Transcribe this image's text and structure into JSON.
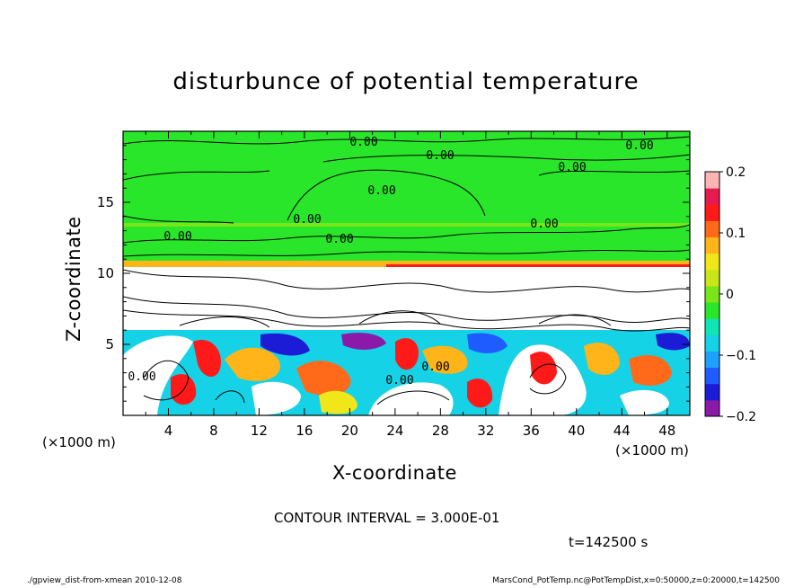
{
  "chart_data": {
    "type": "heatmap",
    "title": "disturbunce of potential temperature",
    "xlabel": "X-coordinate",
    "ylabel": "Z-coordinate",
    "x_unit_label": "(×1000 m)",
    "xlim": [
      0,
      50
    ],
    "ylim": [
      0,
      20
    ],
    "x_ticks": [
      "4",
      "8",
      "12",
      "16",
      "20",
      "24",
      "28",
      "32",
      "36",
      "40",
      "44",
      "48"
    ],
    "y_ticks": [
      "5",
      "10",
      "15"
    ],
    "colorbar": {
      "range": [
        -0.2,
        0.2
      ],
      "tick_labels": [
        "0.2",
        "0.1",
        "0",
        "−0.1",
        "−0.2"
      ],
      "colors": [
        "#8b1aa8",
        "#1c1cd6",
        "#1e5cff",
        "#1ea0ff",
        "#16d2e6",
        "#10e6b4",
        "#2ae62a",
        "#7ae61a",
        "#c8e61a",
        "#f0e61a",
        "#ffb41a",
        "#ff6a1a",
        "#ff1a1a",
        "#e61a50",
        "#ffb4b4"
      ]
    },
    "contour_labels": [
      "0.00",
      "0.00",
      "0.00",
      "0.00",
      "0.00",
      "0.00",
      "0.00",
      "0.00",
      "0.00",
      "0.00",
      "0.00",
      "0.00"
    ],
    "contour_interval": "CONTOUR INTERVAL = 3.000E-01",
    "time": "t=142500 s",
    "footer_left": "./gpview_dist-from-xmean   2010-12-08",
    "footer_right": "MarsCond_PotTemp.nc@PotTempDist,x=0:50000,z=0:20000,t=142500"
  }
}
